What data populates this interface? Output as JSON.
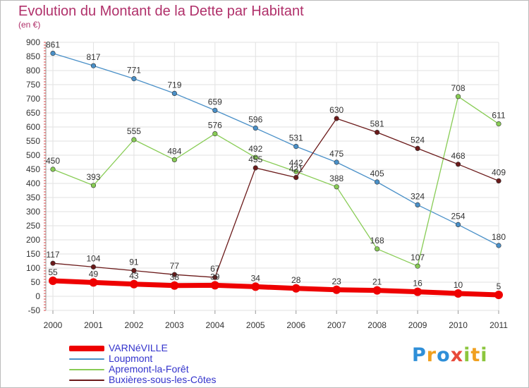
{
  "title": "Evolution du Montant de la Dette par Habitant",
  "subtitle": "(en €)",
  "logo": {
    "letters": [
      {
        "ch": "P",
        "color": "#2f8fd8"
      },
      {
        "ch": "r",
        "color": "#f0a020"
      },
      {
        "ch": "o",
        "color": "#2f8fd8"
      },
      {
        "ch": "x",
        "color": "#e84a3a"
      },
      {
        "ch": "i",
        "color": "#8cc63e"
      },
      {
        "ch": "t",
        "color": "#f0a020"
      },
      {
        "ch": "i",
        "color": "#8cc63e"
      }
    ]
  },
  "chart_data": {
    "type": "line",
    "title": "Evolution du Montant de la Dette par Habitant",
    "ylabel": "(en €)",
    "x": [
      "2000",
      "2001",
      "2002",
      "2003",
      "2004",
      "2005",
      "2006",
      "2007",
      "2008",
      "2009",
      "2010",
      "2011"
    ],
    "ylim": [
      -50,
      900
    ],
    "yticks": [
      -50,
      0,
      50,
      100,
      150,
      200,
      250,
      300,
      350,
      400,
      450,
      500,
      550,
      600,
      650,
      700,
      750,
      800,
      850,
      900
    ],
    "grid": true,
    "legend": "bottom-left",
    "series": [
      {
        "name": "VARNéVILLE",
        "color": "#ee0000",
        "values": [
          55,
          49,
          43,
          38,
          39,
          34,
          28,
          23,
          21,
          16,
          10,
          5
        ],
        "labels": [
          "55",
          "49",
          "43",
          "38",
          "39",
          "34",
          "28",
          "23",
          "21",
          "16",
          "10",
          "5"
        ]
      },
      {
        "name": "Loupmont",
        "color": "#4a90c8",
        "values": [
          861,
          817,
          771,
          719,
          659,
          596,
          531,
          475,
          405,
          324,
          254,
          180
        ],
        "labels": [
          "861",
          "817",
          "771",
          "719",
          "659",
          "596",
          "531",
          "475",
          "405",
          "324",
          "254",
          "180"
        ]
      },
      {
        "name": "Apremont-la-Forêt",
        "color": "#88cc55",
        "values": [
          450,
          393,
          555,
          484,
          576,
          492,
          442,
          388,
          168,
          107,
          708,
          611
        ],
        "labels": [
          "450",
          "393",
          "555",
          "484",
          "576",
          "492",
          "442",
          "388",
          "168",
          "107",
          "708",
          "611"
        ]
      },
      {
        "name": "Buxières-sous-les-Côtes",
        "color": "#6b1a1a",
        "values": [
          117,
          104,
          91,
          77,
          67,
          455,
          421,
          630,
          581,
          524,
          468,
          409
        ],
        "labels": [
          "117",
          "104",
          "91",
          "77",
          "67",
          "455",
          "421",
          "630",
          "581",
          "524",
          "468",
          "409"
        ]
      }
    ]
  }
}
